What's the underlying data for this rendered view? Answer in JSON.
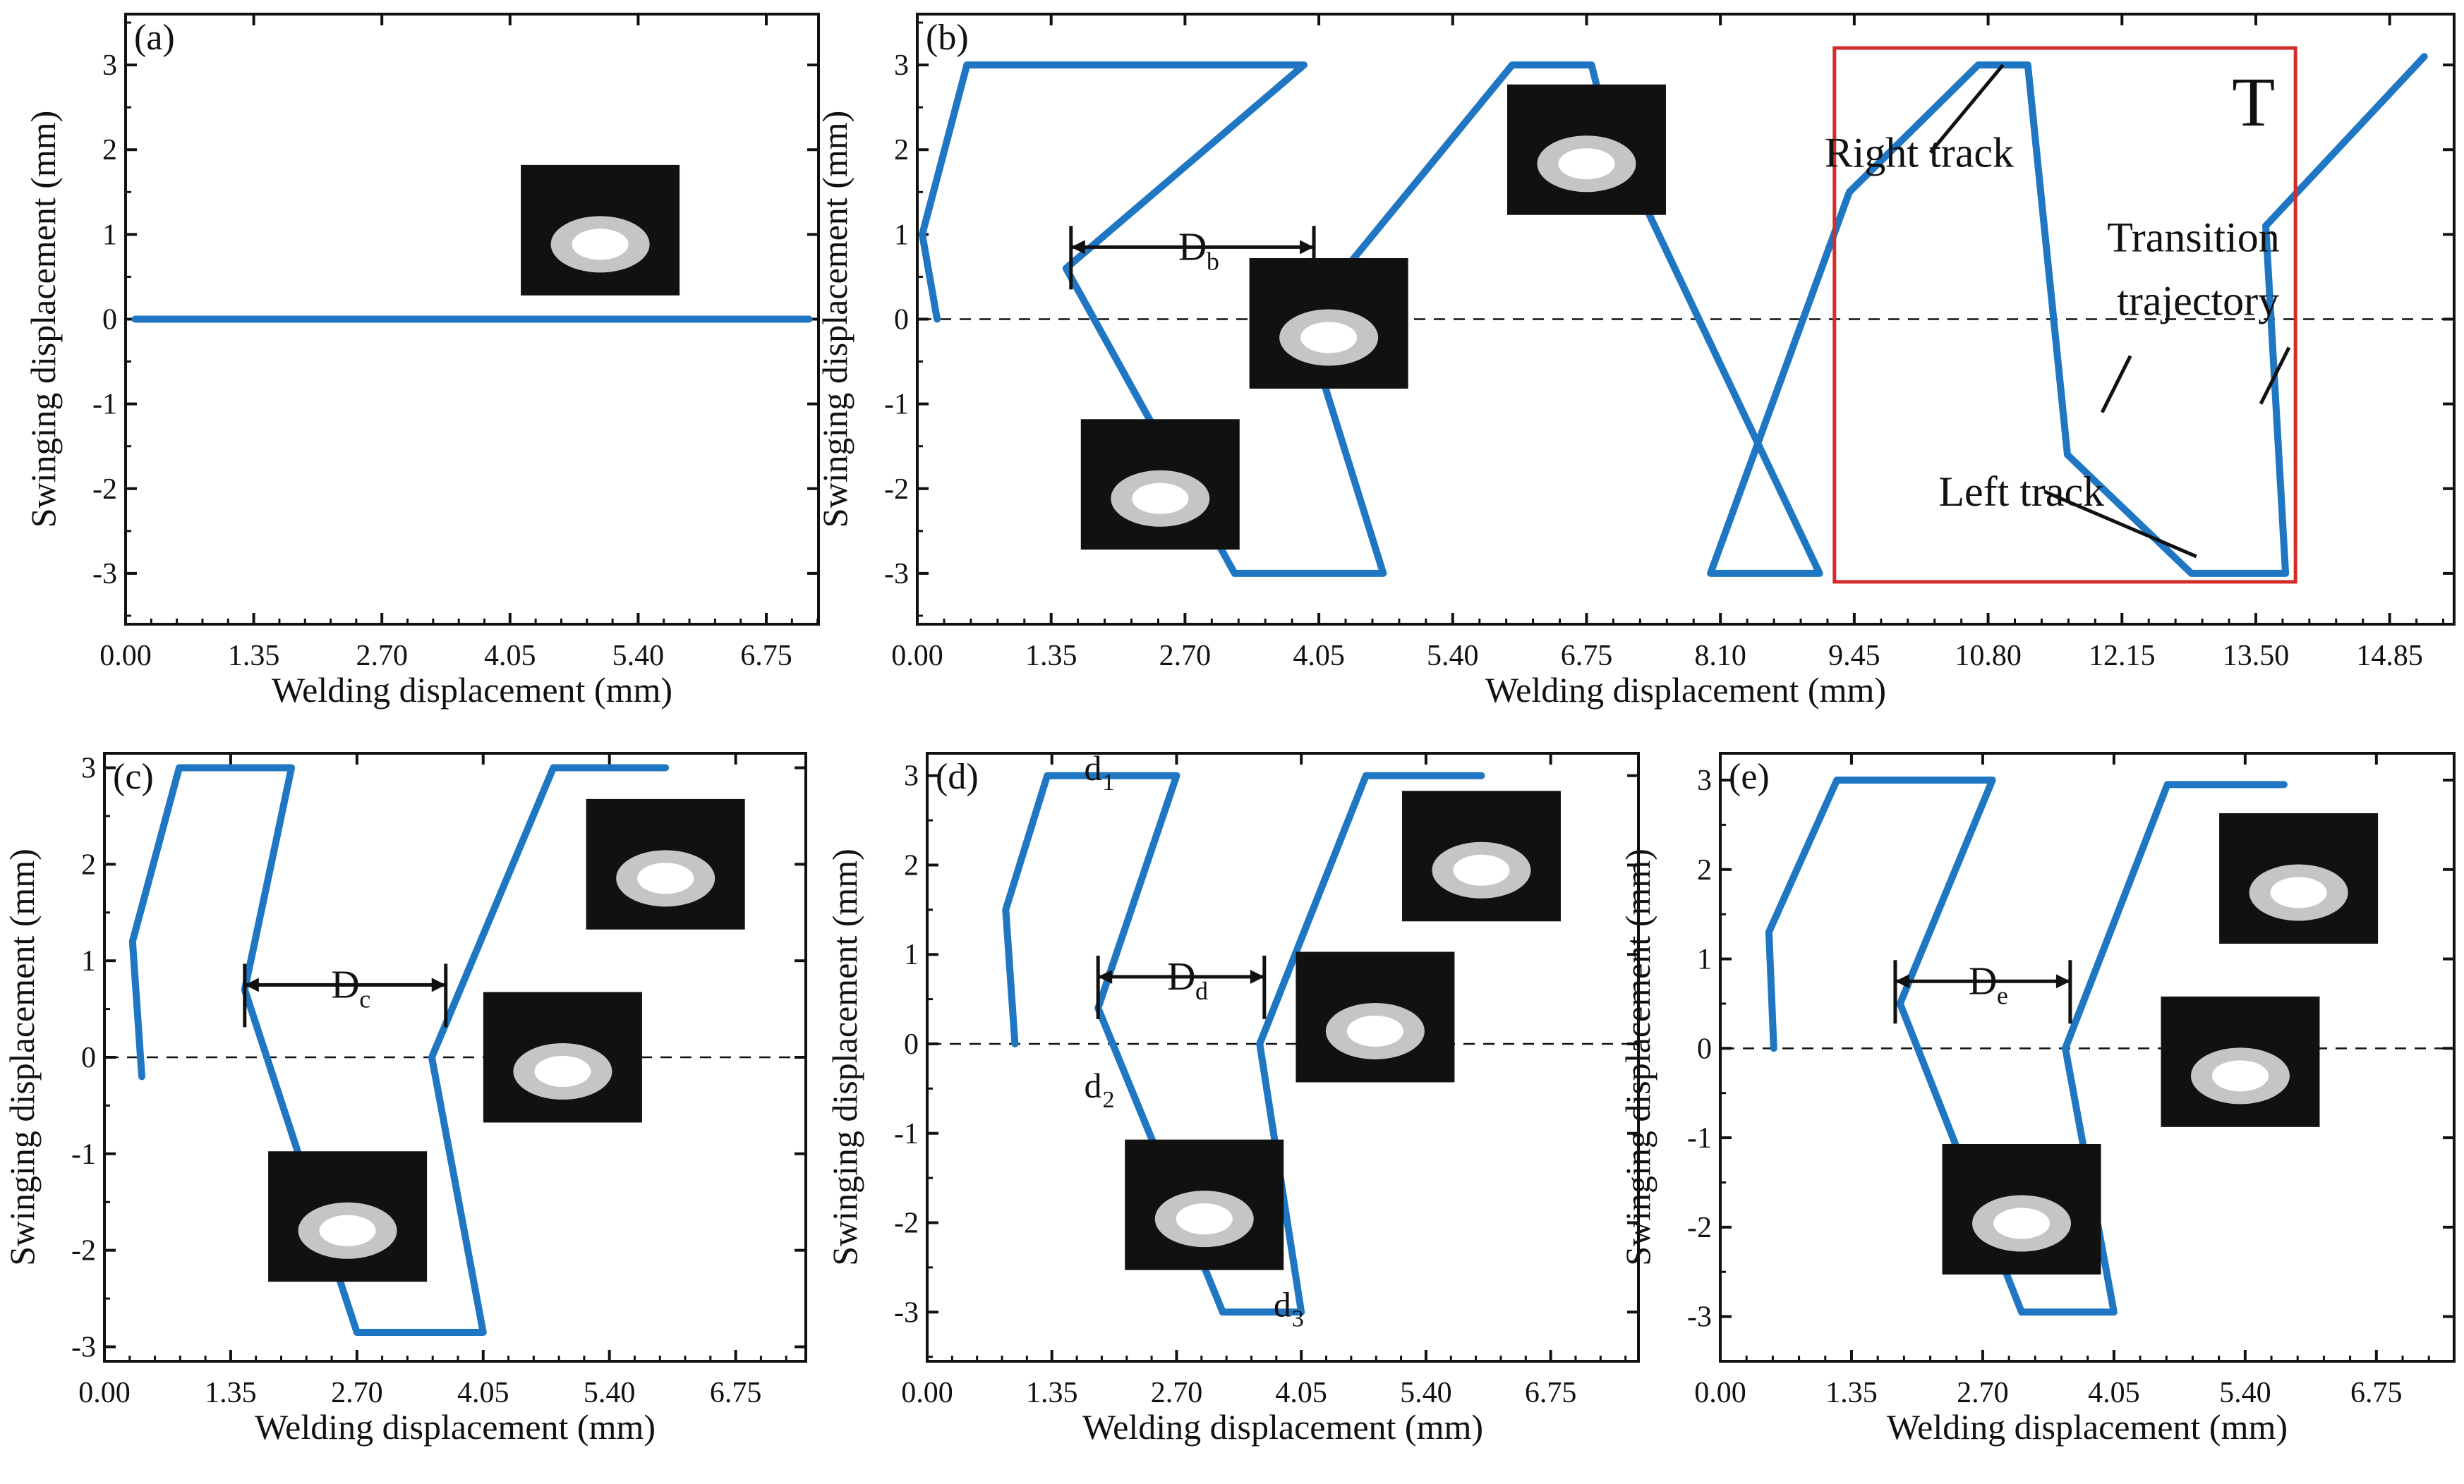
{
  "figure": {
    "xlabel": "Welding displacement (mm)",
    "ylabel": "Swinging displacement (mm)",
    "x_step_mm": 1.35,
    "panels": [
      "a",
      "b",
      "c",
      "d",
      "e"
    ]
  },
  "colors": {
    "trace": "#1f77c4",
    "box": "#d42b2b",
    "dimension_label": "#3a5f9e",
    "text": "#111111"
  },
  "icons": {
    "inset": "arc-image-icon",
    "arrow": "arrow-icon"
  },
  "chart_data": [
    {
      "id": "a",
      "panel_label": "(a)",
      "type": "line",
      "title": "",
      "xlabel": "Welding displacement (mm)",
      "ylabel": "Swinging displacement (mm)",
      "xlim": [
        0,
        7.3
      ],
      "ylim": [
        -3.6,
        3.6
      ],
      "xticks": [
        "0.00",
        "1.35",
        "2.70",
        "4.05",
        "5.40",
        "6.75"
      ],
      "yticks": [
        "3",
        "2",
        "1",
        "0",
        "-1",
        "-2",
        "-3"
      ],
      "series": [
        {
          "name": "trajectory",
          "points": [
            [
              0.1,
              0
            ],
            [
              7.2,
              0
            ]
          ]
        }
      ],
      "zero_line": false,
      "insets": [
        {
          "name": "arc image (straight welding)",
          "x": 5.0,
          "y": 1.05
        }
      ]
    },
    {
      "id": "b",
      "panel_label": "(b)",
      "type": "line",
      "title": "",
      "xlabel": "Welding displacement (mm)",
      "ylabel": "Swinging displacement (mm)",
      "xlim": [
        0,
        15.5
      ],
      "ylim": [
        -3.6,
        3.6
      ],
      "xticks": [
        "0.00",
        "1.35",
        "2.70",
        "4.05",
        "5.40",
        "6.75",
        "8.10",
        "9.45",
        "10.80",
        "12.15",
        "13.50",
        "14.85"
      ],
      "yticks": [
        "3",
        "2",
        "1",
        "0",
        "-1",
        "-2",
        "-3"
      ],
      "series": [
        {
          "name": "trajectory",
          "points": [
            [
              0.2,
              0
            ],
            [
              0.05,
              1
            ],
            [
              0.5,
              3
            ],
            [
              3.9,
              3
            ],
            [
              1.5,
              0.6
            ],
            [
              3.2,
              -3
            ],
            [
              4.7,
              -3
            ],
            [
              3.9,
              0
            ],
            [
              6.0,
              3
            ],
            [
              6.8,
              3
            ],
            [
              6.95,
              2.3
            ],
            [
              9.1,
              -3
            ],
            [
              8.0,
              -3
            ],
            [
              9.4,
              1.5
            ],
            [
              10.7,
              3
            ],
            [
              11.2,
              3
            ],
            [
              11.6,
              -1.6
            ],
            [
              12.85,
              -3
            ],
            [
              13.8,
              -3
            ],
            [
              13.6,
              1.1
            ],
            [
              15.2,
              3.1
            ]
          ]
        }
      ],
      "zero_line": true,
      "box": {
        "label": "T",
        "x_range": [
          9.25,
          13.9
        ],
        "y_range": [
          -3.1,
          3.2
        ]
      },
      "dimension": {
        "label": "D",
        "subscript": "b",
        "x_from": 1.55,
        "x_to": 4.0,
        "y": 0.85
      },
      "annotations": [
        {
          "text": "Right track",
          "x": 9.15,
          "y": 1.8,
          "target": [
            10.95,
            3.0
          ]
        },
        {
          "text": "Transition",
          "x": 12.0,
          "y": 0.8
        },
        {
          "text": "trajectory",
          "x": 12.1,
          "y": 0.05
        },
        {
          "text": "Left track",
          "x": 10.3,
          "y": -2.2,
          "target": [
            12.9,
            -2.8
          ]
        }
      ],
      "transition_arrows": [
        [
          11.95,
          -1.1
        ],
        [
          13.55,
          -1.0
        ]
      ],
      "insets": [
        {
          "name": "arc image (right edge)",
          "x": 6.75,
          "y": 2.0
        },
        {
          "name": "arc image (center)",
          "x": 4.15,
          "y": -0.05
        },
        {
          "name": "arc image (left edge)",
          "x": 2.45,
          "y": -1.95
        }
      ]
    },
    {
      "id": "c",
      "panel_label": "(c)",
      "type": "line",
      "title": "",
      "xlabel": "Welding displacement (mm)",
      "ylabel": "Swinging displacement (mm)",
      "xlim": [
        0,
        7.5
      ],
      "ylim": [
        -3.15,
        3.15
      ],
      "xticks": [
        "0.00",
        "1.35",
        "2.70",
        "4.05",
        "5.40",
        "6.75"
      ],
      "yticks": [
        "3",
        "2",
        "1",
        "0",
        "-1",
        "-2",
        "-3"
      ],
      "series": [
        {
          "name": "trajectory",
          "points": [
            [
              0.4,
              -0.2
            ],
            [
              0.3,
              1.2
            ],
            [
              0.8,
              3
            ],
            [
              2.0,
              3
            ],
            [
              1.5,
              0.7
            ],
            [
              2.7,
              -2.85
            ],
            [
              4.05,
              -2.85
            ],
            [
              3.5,
              0
            ],
            [
              4.8,
              3
            ],
            [
              6.0,
              3
            ]
          ]
        }
      ],
      "zero_line": true,
      "dimension": {
        "label": "D",
        "subscript": "c",
        "x_from": 1.5,
        "x_to": 3.65,
        "y": 0.75
      },
      "insets": [
        {
          "name": "arc image (right edge)",
          "x": 6.0,
          "y": 2.0
        },
        {
          "name": "arc image (center)",
          "x": 4.9,
          "y": 0
        },
        {
          "name": "arc image (left edge)",
          "x": 2.6,
          "y": -1.65
        }
      ]
    },
    {
      "id": "d",
      "panel_label": "(d)",
      "type": "line",
      "title": "",
      "xlabel": "Welding displacement (mm)",
      "ylabel": "Swinging displacement (mm)",
      "xlim": [
        0,
        7.7
      ],
      "ylim": [
        -3.55,
        3.25
      ],
      "xticks": [
        "0.00",
        "1.35",
        "2.70",
        "4.05",
        "5.40",
        "6.75"
      ],
      "yticks": [
        "3",
        "2",
        "1",
        "0",
        "-1",
        "-2",
        "-3"
      ],
      "series": [
        {
          "name": "trajectory",
          "points": [
            [
              0.95,
              0
            ],
            [
              0.85,
              1.5
            ],
            [
              1.3,
              3
            ],
            [
              2.7,
              3
            ],
            [
              1.85,
              0.4
            ],
            [
              3.2,
              -3
            ],
            [
              4.05,
              -3
            ],
            [
              3.6,
              0
            ],
            [
              4.75,
              3
            ],
            [
              6.0,
              3
            ]
          ]
        }
      ],
      "zero_line": true,
      "dimension": {
        "label": "D",
        "subscript": "d",
        "x_from": 1.85,
        "x_to": 3.65,
        "y": 0.75
      },
      "point_labels": [
        {
          "text": "d",
          "subscript": "1",
          "x": 1.7,
          "y": 2.95
        },
        {
          "text": "d",
          "subscript": "2",
          "x": 1.7,
          "y": -0.6
        },
        {
          "text": "d",
          "subscript": "3",
          "x": 3.75,
          "y": -3.05
        }
      ],
      "insets": [
        {
          "name": "arc image (right edge)",
          "x": 6.0,
          "y": 2.1
        },
        {
          "name": "arc image (center)",
          "x": 4.85,
          "y": 0.3
        },
        {
          "name": "arc image (left edge)",
          "x": 3.0,
          "y": -1.8
        }
      ]
    },
    {
      "id": "e",
      "panel_label": "(e)",
      "type": "line",
      "title": "",
      "xlabel": "Welding displacement (mm)",
      "ylabel": "Swinging displacement (mm)",
      "xlim": [
        0,
        7.55
      ],
      "ylim": [
        -3.5,
        3.3
      ],
      "xticks": [
        "0.00",
        "1.35",
        "2.70",
        "4.05",
        "5.40",
        "6.75"
      ],
      "yticks": [
        "3",
        "2",
        "1",
        "0",
        "-1",
        "-2",
        "-3"
      ],
      "series": [
        {
          "name": "trajectory",
          "points": [
            [
              0.55,
              0
            ],
            [
              0.5,
              1.3
            ],
            [
              1.2,
              3
            ],
            [
              2.8,
              3
            ],
            [
              1.85,
              0.5
            ],
            [
              3.1,
              -2.95
            ],
            [
              4.05,
              -2.95
            ],
            [
              3.55,
              0
            ],
            [
              4.6,
              2.95
            ],
            [
              5.8,
              2.95
            ]
          ]
        }
      ],
      "zero_line": true,
      "dimension": {
        "label": "D",
        "subscript": "e",
        "x_from": 1.8,
        "x_to": 3.6,
        "y": 0.75
      },
      "insets": [
        {
          "name": "arc image (right edge)",
          "x": 5.95,
          "y": 1.9
        },
        {
          "name": "arc image (center)",
          "x": 5.35,
          "y": -0.15
        },
        {
          "name": "arc image (left edge)",
          "x": 3.1,
          "y": -1.8
        }
      ]
    }
  ]
}
